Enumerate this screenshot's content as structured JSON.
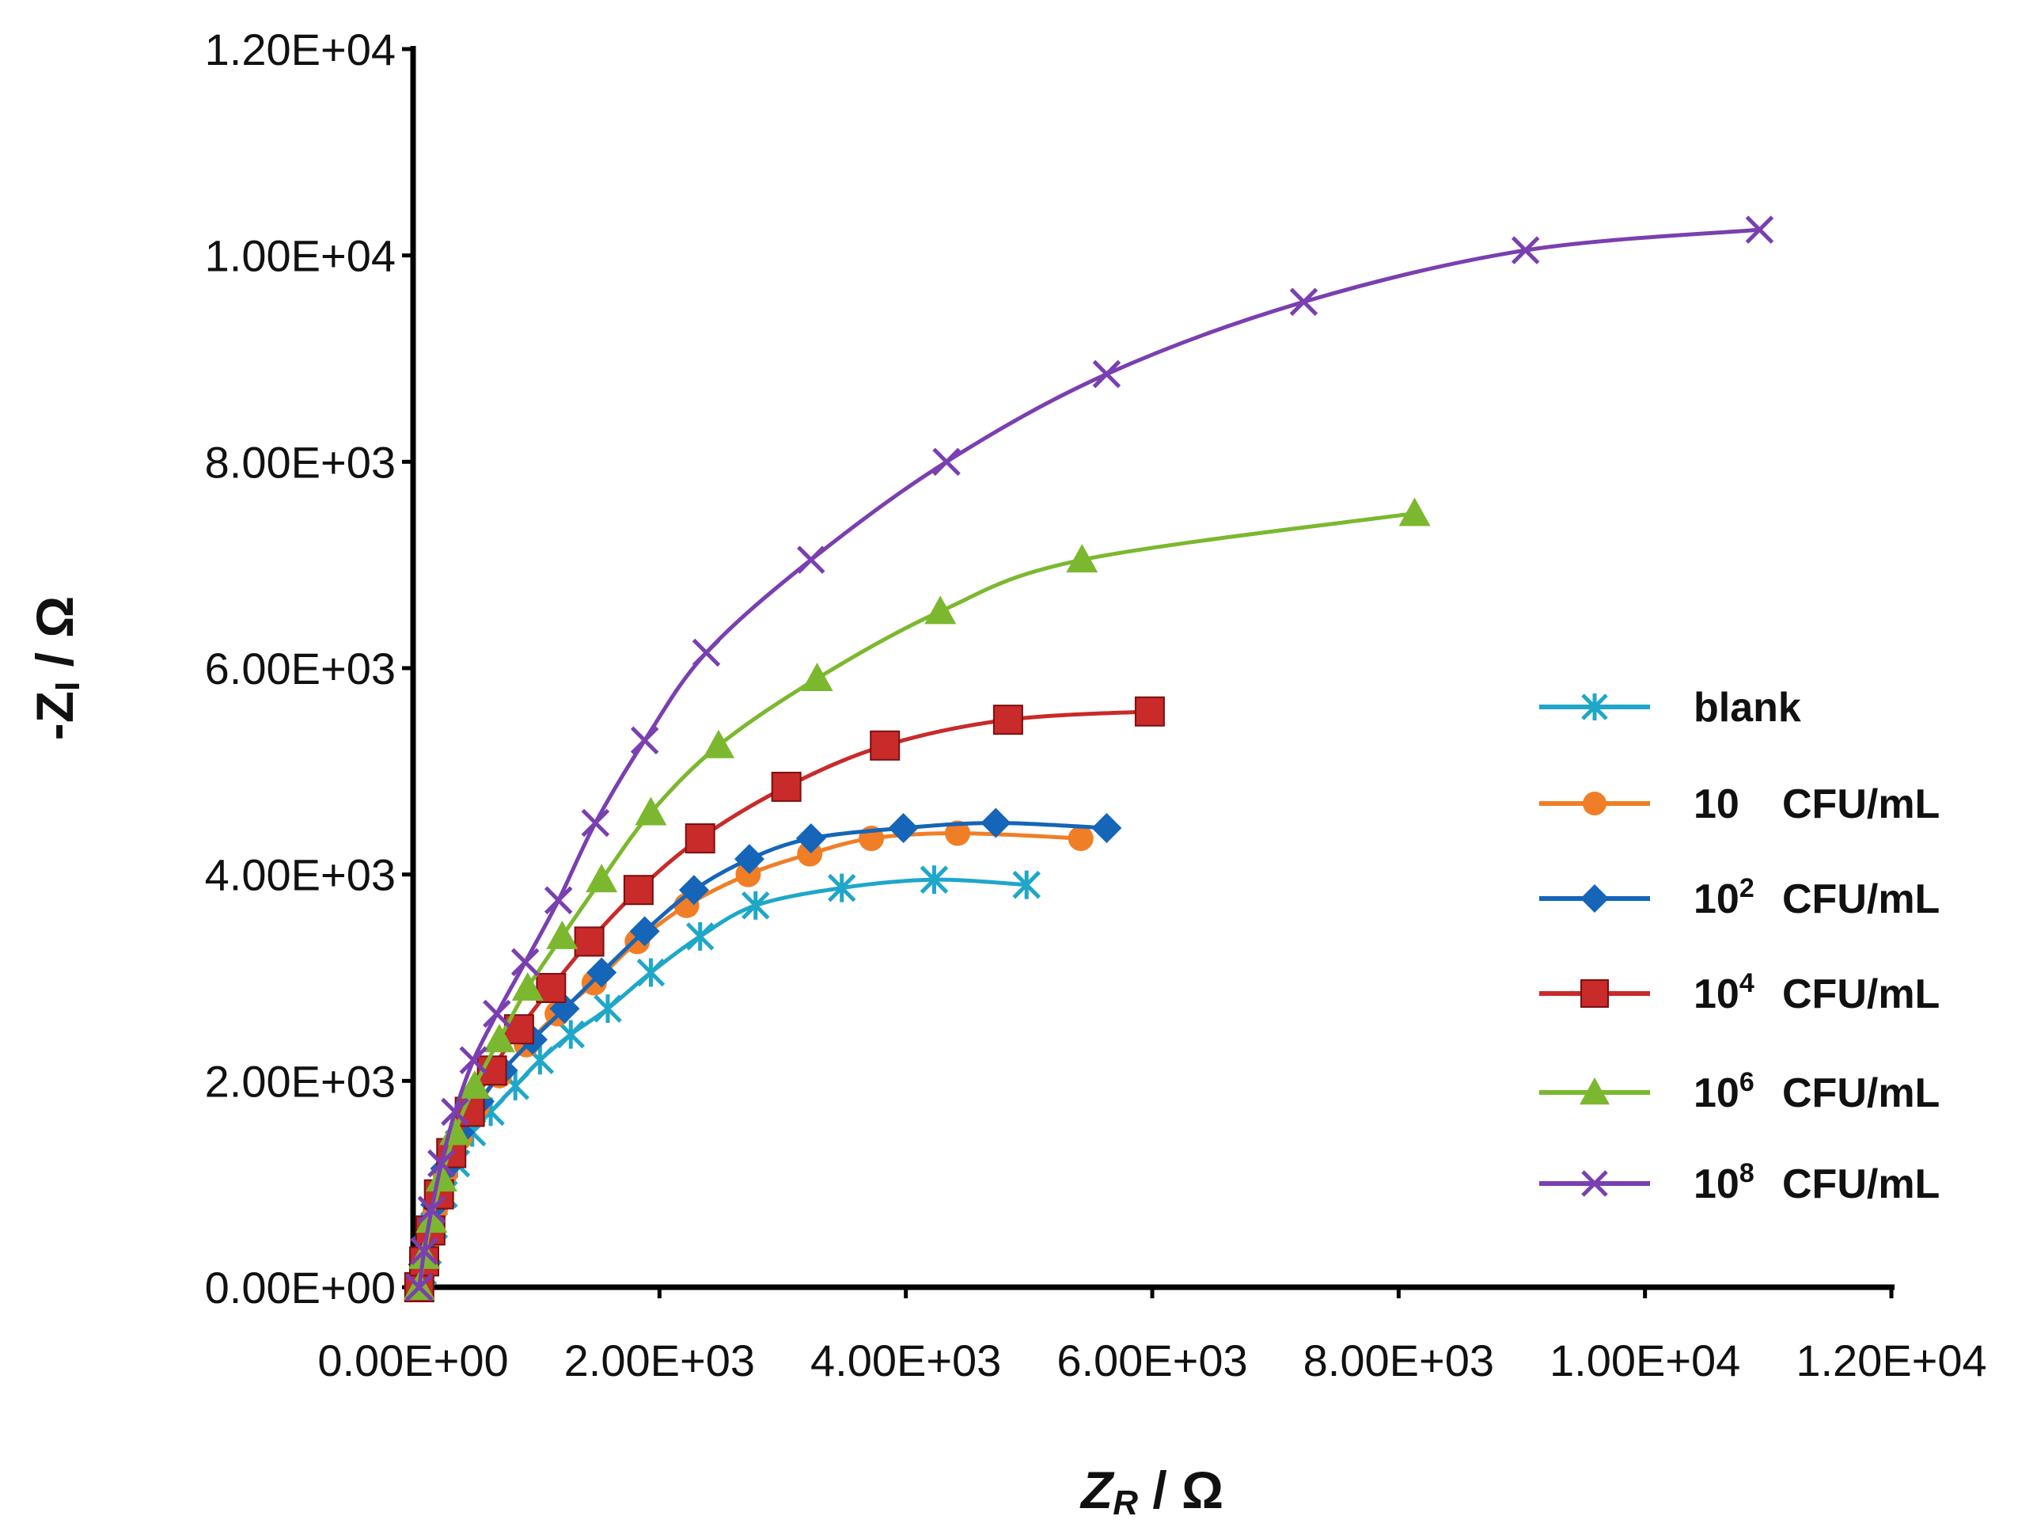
{
  "chart_data": {
    "type": "line",
    "title": "",
    "xlabel": {
      "main": "Z",
      "sub": "R",
      "unit": " / Ω"
    },
    "ylabel": {
      "main": "-Z",
      "sub": "I",
      "unit": " / Ω"
    },
    "xlim": [
      0,
      12000
    ],
    "ylim": [
      0,
      12000
    ],
    "xticks": [
      0,
      2000,
      4000,
      6000,
      8000,
      10000,
      12000
    ],
    "yticks": [
      0,
      2000,
      4000,
      6000,
      8000,
      10000,
      12000
    ],
    "xtick_labels": [
      "0.00E+00",
      "2.00E+03",
      "4.00E+03",
      "6.00E+03",
      "8.00E+03",
      "1.00E+04",
      "1.20E+04"
    ],
    "ytick_labels": [
      "0.00E+00",
      "2.00E+03",
      "4.00E+03",
      "6.00E+03",
      "8.00E+03",
      "1.00E+04",
      "1.20E+04"
    ],
    "legend_position": "right",
    "series": [
      {
        "name": "blank",
        "legend": {
          "base": "blank",
          "exp": "",
          "unit": ""
        },
        "color": "#1fa7c9",
        "marker": "asterisk",
        "x": [
          50,
          80,
          120,
          170,
          250,
          350,
          480,
          630,
          830,
          1030,
          1280,
          1580,
          1930,
          2330,
          2780,
          3480,
          4230,
          4980
        ],
        "y": [
          0,
          150,
          350,
          600,
          900,
          1200,
          1500,
          1700,
          1950,
          2200,
          2450,
          2700,
          3050,
          3400,
          3700,
          3870,
          3950,
          3900
        ]
      },
      {
        "name": "10 CFU/mL",
        "legend": {
          "base": "10",
          "exp": "",
          "unit": "CFU/mL"
        },
        "color": "#f07e27",
        "marker": "circle",
        "x": [
          50,
          80,
          120,
          180,
          260,
          380,
          520,
          700,
          920,
          1170,
          1470,
          1820,
          2220,
          2720,
          3220,
          3720,
          4420,
          5420
        ],
        "y": [
          0,
          200,
          450,
          750,
          1100,
          1450,
          1750,
          2050,
          2350,
          2650,
          2950,
          3350,
          3700,
          4000,
          4200,
          4350,
          4400,
          4350
        ]
      },
      {
        "name": "10^2 CFU/mL",
        "legend": {
          "base": "10",
          "exp": "2",
          "unit": "CFU/mL"
        },
        "color": "#1565b8",
        "marker": "diamond",
        "x": [
          50,
          80,
          120,
          180,
          260,
          380,
          540,
          730,
          970,
          1230,
          1530,
          1880,
          2280,
          2730,
          3230,
          3980,
          4730,
          5630
        ],
        "y": [
          0,
          220,
          480,
          800,
          1150,
          1500,
          1800,
          2100,
          2400,
          2700,
          3050,
          3450,
          3850,
          4150,
          4350,
          4450,
          4500,
          4450
        ]
      },
      {
        "name": "10^4 CFU/mL",
        "legend": {
          "base": "10",
          "exp": "4",
          "unit": "CFU/mL"
        },
        "color": "#c92a2a",
        "marker": "square",
        "x": [
          50,
          90,
          140,
          210,
          310,
          460,
          640,
          860,
          1120,
          1430,
          1830,
          2330,
          3030,
          3830,
          4830,
          5980
        ],
        "y": [
          0,
          250,
          550,
          900,
          1300,
          1700,
          2100,
          2500,
          2900,
          3350,
          3850,
          4350,
          4850,
          5250,
          5500,
          5580
        ]
      },
      {
        "name": "10^6 CFU/mL",
        "legend": {
          "base": "10",
          "exp": "6",
          "unit": "CFU/mL"
        },
        "color": "#7cb82f",
        "marker": "triangle",
        "x": [
          50,
          90,
          150,
          230,
          340,
          500,
          700,
          930,
          1210,
          1530,
          1930,
          2480,
          3280,
          4280,
          5430,
          8130
        ],
        "y": [
          0,
          300,
          650,
          1050,
          1500,
          1950,
          2400,
          2900,
          3400,
          3950,
          4600,
          5250,
          5900,
          6550,
          7050,
          7500
        ]
      },
      {
        "name": "10^8 CFU/mL",
        "legend": {
          "base": "10",
          "exp": "8",
          "unit": "CFU/mL"
        },
        "color": "#7a3fb0",
        "marker": "cross",
        "x": [
          50,
          90,
          150,
          230,
          340,
          490,
          680,
          910,
          1180,
          1480,
          1880,
          2380,
          3230,
          4330,
          5630,
          7230,
          9030,
          10930
        ],
        "y": [
          0,
          350,
          750,
          1200,
          1700,
          2200,
          2650,
          3150,
          3750,
          4500,
          5300,
          6150,
          7050,
          8000,
          8850,
          9550,
          10050,
          10250
        ]
      }
    ]
  }
}
